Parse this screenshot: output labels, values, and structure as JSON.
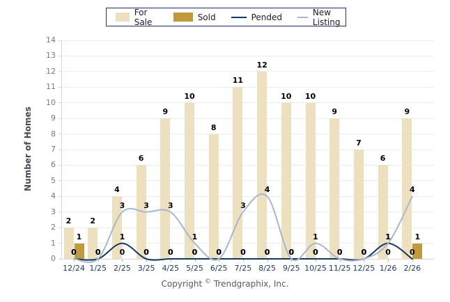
{
  "chart_data": {
    "type": "bar",
    "categories": [
      "12/24",
      "1/25",
      "2/25",
      "3/25",
      "4/25",
      "5/25",
      "6/25",
      "7/25",
      "8/25",
      "9/25",
      "10/25",
      "11/25",
      "12/25",
      "1/26",
      "2/26"
    ],
    "series": [
      {
        "name": "For Sale",
        "kind": "bar",
        "color": "#EDE0BE",
        "values": [
          2,
          2,
          4,
          6,
          9,
          10,
          8,
          11,
          12,
          10,
          10,
          9,
          7,
          6,
          9
        ]
      },
      {
        "name": "Sold",
        "kind": "bar",
        "color": "#C19A3D",
        "values": [
          1,
          0,
          0,
          0,
          0,
          0,
          0,
          0,
          0,
          0,
          0,
          0,
          0,
          0,
          1
        ]
      },
      {
        "name": "Pended",
        "kind": "line",
        "color": "#17365D",
        "values": [
          0,
          0,
          1,
          0,
          0,
          0,
          0,
          0,
          0,
          0,
          0,
          0,
          0,
          1,
          0
        ]
      },
      {
        "name": "New Listing",
        "kind": "line",
        "color": "#A8B5CE",
        "values": [
          0,
          0,
          3,
          3,
          3,
          1,
          0,
          3,
          4,
          0,
          1,
          0,
          0,
          1,
          4
        ]
      }
    ],
    "title": "",
    "xlabel": "",
    "ylabel": "Number of Homes",
    "ylim": [
      0,
      14
    ],
    "ytick_step": 1,
    "grid": true,
    "legend_position": "top",
    "value_labels": true
  },
  "footer": {
    "copyright_word": "Copyright",
    "copyright_symbol": "©",
    "copyright_owner": "Trendgraphix, Inc."
  }
}
